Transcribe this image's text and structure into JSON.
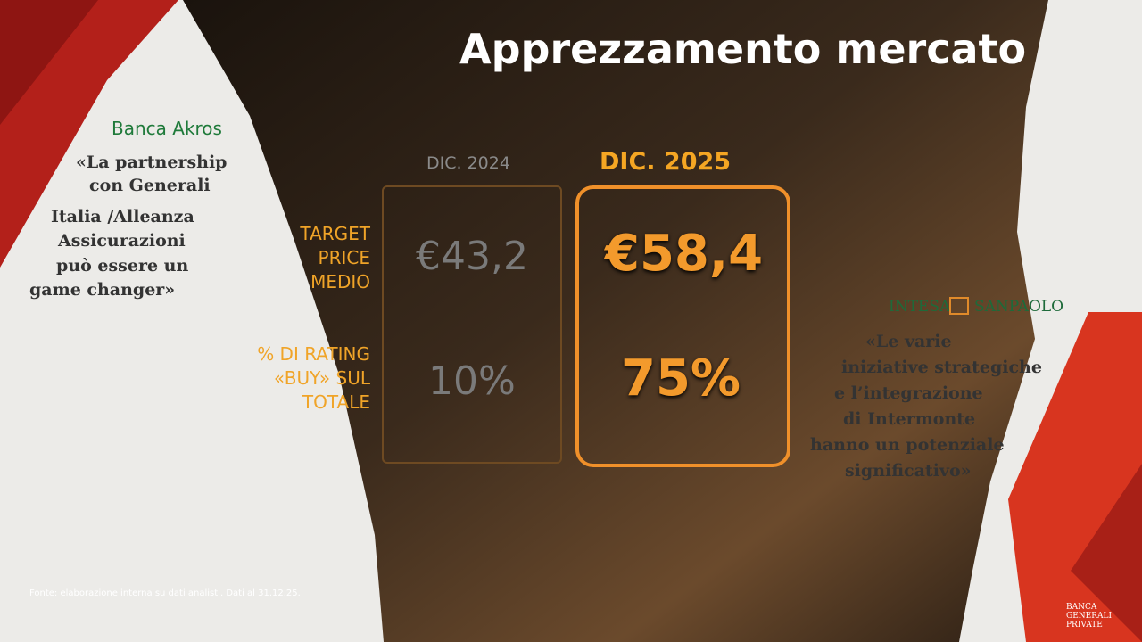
{
  "title": "Apprezzamento mercato",
  "table": {
    "columns": [
      "DIC. 2024",
      "DIC. 2025"
    ],
    "rows": [
      {
        "label": [
          "TARGET",
          "PRICE",
          "MEDIO"
        ],
        "values": [
          "€43,2",
          "€58,4"
        ]
      },
      {
        "label": [
          "% DI RATING",
          "«BUY» SUL",
          "TOTALE"
        ],
        "values": [
          "10%",
          "75%"
        ]
      }
    ]
  },
  "quotes": [
    {
      "brand": "Banca Akros",
      "lines": [
        "«La partnership",
        "con Generali",
        "Italia /Alleanza",
        "Assicurazioni",
        "può essere un",
        "game changer»"
      ]
    },
    {
      "brand": [
        "INTESA",
        "SANPAOLO"
      ],
      "lines": [
        "«Le varie",
        "iniziative strategiche",
        "e l’integrazione",
        "di Intermonte",
        "hanno un potenziale",
        "significativo»"
      ]
    }
  ],
  "footnote": "Fonte: elaborazione interna su dati analisti. Dati al 31.12.25.",
  "logo": [
    "BANCA",
    "GENERALI",
    "PRIVATE"
  ]
}
